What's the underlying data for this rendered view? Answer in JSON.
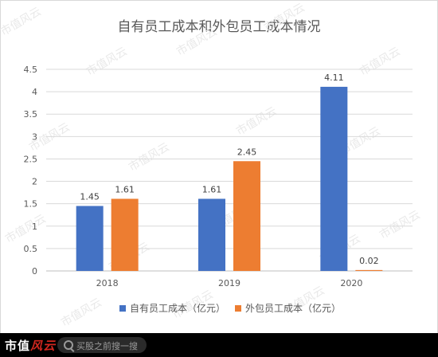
{
  "chart_data": {
    "type": "bar",
    "title": "自有员工成本和外包员工成本情况",
    "categories": [
      "2018",
      "2019",
      "2020"
    ],
    "series": [
      {
        "name": "自有员工成本（亿元）",
        "values": [
          1.45,
          1.61,
          4.11
        ],
        "labels": [
          "1.45",
          "1.61",
          "4.11"
        ],
        "color": "#4472c4"
      },
      {
        "name": "外包员工成本（亿元）",
        "values": [
          1.61,
          2.45,
          0.02
        ],
        "labels": [
          "1.61",
          "2.45",
          "0.02"
        ],
        "color": "#ed7d31"
      }
    ],
    "ylim": [
      0,
      4.5
    ],
    "yticks": [
      "0",
      "0.5",
      "1",
      "1.5",
      "2",
      "2.5",
      "3",
      "3.5",
      "4",
      "4.5"
    ],
    "grid": true,
    "legend": "bottom",
    "watermark": "市值风云"
  },
  "footer": {
    "brand_main": "市值",
    "brand_accent": "风云",
    "search_placeholder": "买股之前搜一搜"
  }
}
